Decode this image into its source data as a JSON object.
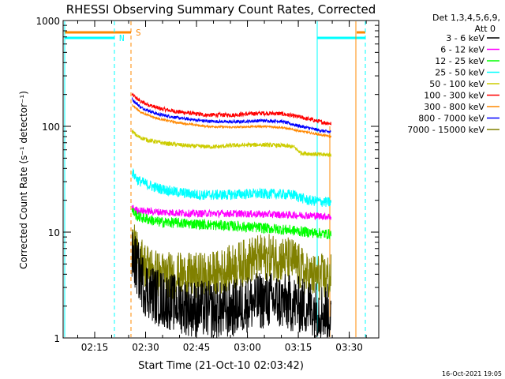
{
  "chart_data": {
    "type": "line",
    "title": "RHESSI Observing Summary Count Rates, Corrected",
    "xlabel": "Start Time (21-Oct-10 02:03:42)",
    "ylabel": "Corrected Count Rate (s⁻¹ detector⁻¹)",
    "x_unit": "minutes after 02:03:42 UT",
    "xlim": [
      2.0,
      95.0
    ],
    "ylim": [
      1,
      1000
    ],
    "yscale": "log",
    "x_ticks": [
      {
        "v": 11.3,
        "label": "02:15"
      },
      {
        "v": 26.3,
        "label": "02:30"
      },
      {
        "v": 41.3,
        "label": "02:45"
      },
      {
        "v": 56.3,
        "label": "03:00"
      },
      {
        "v": 71.3,
        "label": "03:15"
      },
      {
        "v": 86.3,
        "label": "03:30"
      }
    ],
    "y_ticks": [
      {
        "v": 1,
        "label": "1"
      },
      {
        "v": 10,
        "label": "10"
      },
      {
        "v": 100,
        "label": "100"
      },
      {
        "v": 1000,
        "label": "1000"
      }
    ],
    "legend": {
      "title_line1": "Det 1,3,4,5,6,9,",
      "title_line2": "Att 0",
      "placement": "right"
    },
    "series": [
      {
        "name": "3 - 6 keV",
        "color": "#000000",
        "noise": 0.55,
        "points": [
          [
            22.3,
            6
          ],
          [
            24,
            4.5
          ],
          [
            26,
            3
          ],
          [
            30,
            2.4
          ],
          [
            40,
            1.9
          ],
          [
            50,
            1.8
          ],
          [
            56,
            2.1
          ],
          [
            62,
            2.3
          ],
          [
            70,
            2.1
          ],
          [
            76,
            1.9
          ],
          [
            81,
            1.7
          ]
        ]
      },
      {
        "name": "6 - 12 keV",
        "color": "#ff00ff",
        "noise": 0.07,
        "points": [
          [
            22.3,
            17
          ],
          [
            24,
            16
          ],
          [
            30,
            15.5
          ],
          [
            40,
            15
          ],
          [
            50,
            15
          ],
          [
            60,
            14.8
          ],
          [
            70,
            14.5
          ],
          [
            76,
            14.3
          ],
          [
            81,
            14
          ]
        ]
      },
      {
        "name": "12 - 25 keV",
        "color": "#00ff00",
        "noise": 0.1,
        "points": [
          [
            22.3,
            16
          ],
          [
            24,
            14
          ],
          [
            30,
            12.5
          ],
          [
            40,
            12
          ],
          [
            50,
            11.5
          ],
          [
            60,
            11
          ],
          [
            68,
            10.5
          ],
          [
            74,
            10
          ],
          [
            81,
            9.5
          ]
        ]
      },
      {
        "name": "25 - 50 keV",
        "color": "#00ffff",
        "noise": 0.1,
        "points": [
          [
            22.3,
            37
          ],
          [
            24,
            31
          ],
          [
            27,
            28
          ],
          [
            30,
            26
          ],
          [
            35,
            24
          ],
          [
            42,
            22.5
          ],
          [
            50,
            22.5
          ],
          [
            56,
            23
          ],
          [
            63,
            23
          ],
          [
            70,
            22.5
          ],
          [
            74,
            20
          ],
          [
            81,
            19
          ]
        ]
      },
      {
        "name": "50 - 100 keV",
        "color": "#cccc00",
        "noise": 0.04,
        "points": [
          [
            22.3,
            90
          ],
          [
            24,
            80
          ],
          [
            27,
            74
          ],
          [
            32,
            69
          ],
          [
            40,
            65
          ],
          [
            47,
            64
          ],
          [
            52,
            66
          ],
          [
            60,
            67
          ],
          [
            66,
            66
          ],
          [
            70,
            64
          ],
          [
            72,
            56
          ],
          [
            78,
            54
          ],
          [
            81,
            54
          ]
        ]
      },
      {
        "name": "100 - 300 keV",
        "color": "#ff0000",
        "noise": 0.04,
        "points": [
          [
            22.3,
            200
          ],
          [
            25,
            170
          ],
          [
            30,
            148
          ],
          [
            36,
            137
          ],
          [
            44,
            128
          ],
          [
            52,
            128
          ],
          [
            60,
            133
          ],
          [
            66,
            132
          ],
          [
            72,
            122
          ],
          [
            78,
            110
          ],
          [
            81,
            106
          ]
        ]
      },
      {
        "name": "300 - 800 keV",
        "color": "#ff8800",
        "noise": 0.02,
        "points": [
          [
            22.3,
            160
          ],
          [
            25,
            135
          ],
          [
            30,
            118
          ],
          [
            36,
            108
          ],
          [
            44,
            100
          ],
          [
            52,
            98
          ],
          [
            60,
            100
          ],
          [
            66,
            98
          ],
          [
            72,
            90
          ],
          [
            78,
            83
          ],
          [
            81,
            80
          ]
        ]
      },
      {
        "name": "800 - 7000 keV",
        "color": "#0000ff",
        "noise": 0.03,
        "points": [
          [
            22.3,
            180
          ],
          [
            25,
            150
          ],
          [
            30,
            130
          ],
          [
            36,
            120
          ],
          [
            44,
            112
          ],
          [
            52,
            110
          ],
          [
            60,
            113
          ],
          [
            66,
            112
          ],
          [
            72,
            100
          ],
          [
            78,
            91
          ],
          [
            81,
            88
          ]
        ]
      },
      {
        "name": "7000 - 15000 keV",
        "color": "#808000",
        "noise": 0.45,
        "points": [
          [
            22.3,
            8
          ],
          [
            24,
            6
          ],
          [
            26,
            5
          ],
          [
            30,
            4
          ],
          [
            40,
            3.8
          ],
          [
            47,
            4
          ],
          [
            53,
            4.8
          ],
          [
            58,
            5.6
          ],
          [
            64,
            5.8
          ],
          [
            70,
            5.3
          ],
          [
            74,
            3.8
          ],
          [
            81,
            3.7
          ]
        ]
      }
    ],
    "annotations": [
      {
        "label": "S",
        "color": "#ff8800"
      },
      {
        "label": "N",
        "color": "#00ffff"
      }
    ],
    "footer_date": "16-Oct-2021 19:05"
  }
}
